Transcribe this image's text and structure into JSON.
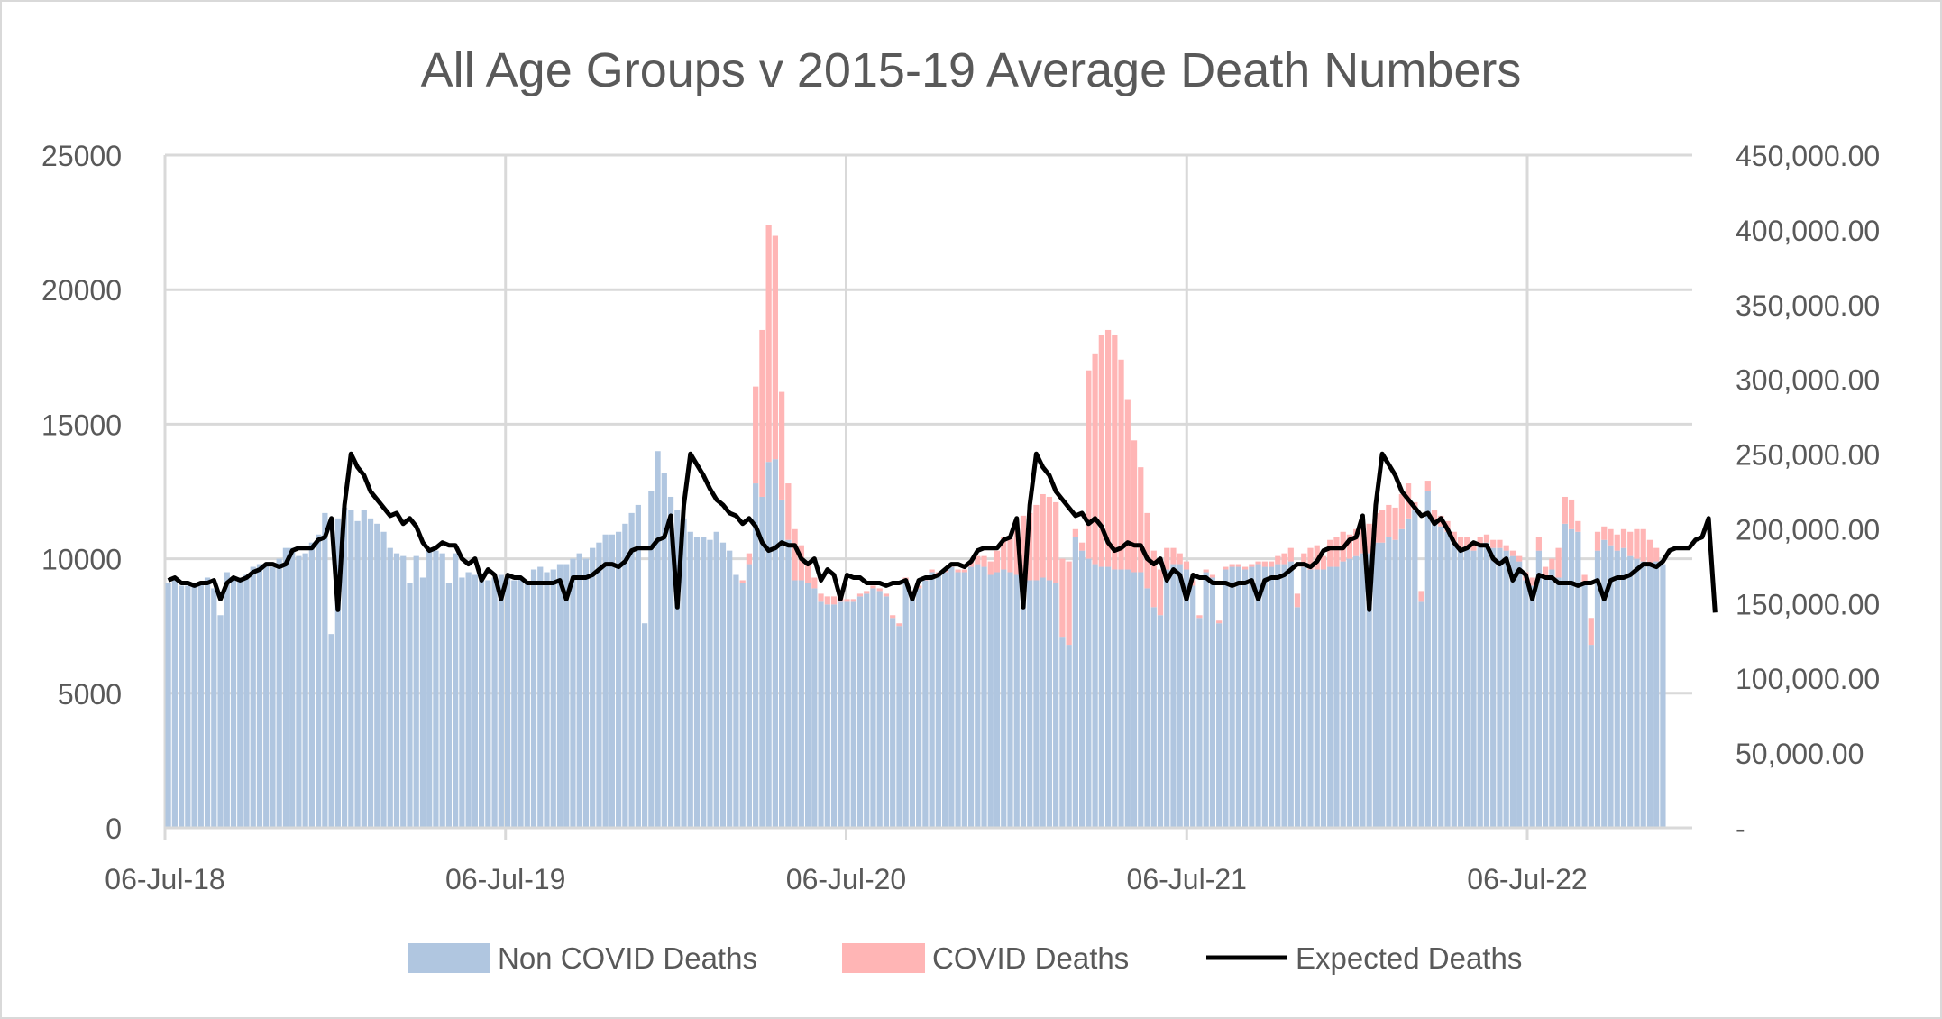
{
  "chart_data": {
    "type": "bar",
    "title": "All Age Groups v 2015-19 Average Death Numbers",
    "xlabel": "",
    "ylabel": "",
    "y_left_lim": [
      0,
      25000
    ],
    "y_left_ticks": [
      "0",
      "5000",
      "10000",
      "15000",
      "20000",
      "25000"
    ],
    "y_right_lim": [
      0,
      450000
    ],
    "y_right_ticks": [
      "-",
      "50,000.00",
      "100,000.00",
      "150,000.00",
      "200,000.00",
      "250,000.00",
      "300,000.00",
      "350,000.00",
      "400,000.00",
      "450,000.00"
    ],
    "x_ticks": [
      "06-Jul-18",
      "06-Jul-19",
      "06-Jul-20",
      "06-Jul-21",
      "06-Jul-22"
    ],
    "x_start": "2018-07-06",
    "x_end_weeks": 234,
    "grid": true,
    "legend_position": "bottom",
    "stacked": true,
    "series": [
      {
        "name": "Non COVID Deaths",
        "type": "bar",
        "color": "#b0c6e0",
        "axis": "left",
        "values": [
          9100,
          9200,
          9000,
          9000,
          9000,
          9100,
          9300,
          8900,
          7900,
          9500,
          9300,
          9300,
          9400,
          9700,
          9800,
          9800,
          9700,
          10000,
          10400,
          10400,
          10100,
          10200,
          10600,
          10900,
          11700,
          7200,
          11500,
          11900,
          11800,
          11400,
          11800,
          11500,
          11300,
          11000,
          10400,
          10200,
          10100,
          9100,
          10100,
          9300,
          10300,
          10300,
          10200,
          9100,
          10200,
          9300,
          9500,
          9400,
          9200,
          9200,
          9300,
          9400,
          9300,
          9200,
          9300,
          9100,
          9600,
          9700,
          9500,
          9600,
          9800,
          9800,
          10000,
          10200,
          10000,
          10400,
          10600,
          10900,
          10900,
          11000,
          11300,
          11700,
          12000,
          7600,
          12500,
          14000,
          13200,
          12300,
          11800,
          11500,
          11000,
          10800,
          10800,
          10700,
          11000,
          10600,
          10300,
          9400,
          9100,
          9800,
          12800,
          12300,
          13600,
          13700,
          12200,
          10700,
          9200,
          9200,
          9100,
          8900,
          8400,
          8300,
          8300,
          8400,
          8400,
          8400,
          8600,
          8700,
          8900,
          8800,
          8600,
          7800,
          7500,
          9200,
          8700,
          8900,
          9200,
          9500,
          9400,
          9500,
          9700,
          9500,
          9500,
          9700,
          9800,
          9700,
          9400,
          9500,
          9600,
          9500,
          9400,
          9300,
          9200,
          9200,
          9300,
          9200,
          9100,
          7100,
          6800,
          10800,
          10300,
          10000,
          9800,
          9700,
          9700,
          9600,
          9600,
          9600,
          9500,
          9500,
          8900,
          8200,
          7900,
          9600,
          9800,
          9800,
          9600,
          9000,
          7800,
          9500,
          9300,
          7600,
          9600,
          9700,
          9700,
          9600,
          9700,
          9800,
          9700,
          9700,
          9800,
          9800,
          9900,
          8200,
          9700,
          9600,
          9600,
          9600,
          9700,
          9700,
          9900,
          10000,
          10100,
          10200,
          10200,
          10600,
          10600,
          10800,
          10700,
          11100,
          11500,
          11800,
          8400,
          12500,
          11300,
          11200,
          11000,
          10600,
          10400,
          10400,
          10300,
          10500,
          10600,
          10400,
          10400,
          10300,
          10100,
          9900,
          9200,
          9000,
          10300,
          9300,
          9600,
          9300,
          11300,
          11100,
          11000,
          9100,
          6800,
          10300,
          10700,
          10500,
          10300,
          10400,
          10100,
          10000,
          9900,
          9800,
          9900,
          9800
        ]
      },
      {
        "name": "COVID Deaths",
        "type": "bar",
        "color": "#ffb5b5",
        "axis": "left",
        "values": [
          0,
          0,
          0,
          0,
          0,
          0,
          0,
          0,
          0,
          0,
          0,
          0,
          0,
          0,
          0,
          0,
          0,
          0,
          0,
          0,
          0,
          0,
          0,
          0,
          0,
          0,
          0,
          0,
          0,
          0,
          0,
          0,
          0,
          0,
          0,
          0,
          0,
          0,
          0,
          0,
          0,
          0,
          0,
          0,
          0,
          0,
          0,
          0,
          0,
          0,
          0,
          0,
          0,
          0,
          0,
          0,
          0,
          0,
          0,
          0,
          0,
          0,
          0,
          0,
          0,
          0,
          0,
          0,
          0,
          0,
          0,
          0,
          0,
          0,
          0,
          0,
          0,
          0,
          0,
          0,
          0,
          0,
          0,
          0,
          0,
          0,
          0,
          0,
          100,
          400,
          3600,
          6200,
          8800,
          8300,
          4000,
          2100,
          1900,
          1300,
          800,
          400,
          300,
          300,
          300,
          200,
          100,
          100,
          100,
          100,
          100,
          100,
          100,
          100,
          100,
          100,
          100,
          100,
          100,
          100,
          100,
          100,
          100,
          100,
          100,
          200,
          300,
          400,
          500,
          800,
          1200,
          1300,
          1800,
          2300,
          2500,
          2800,
          3100,
          3100,
          3000,
          2900,
          3100,
          300,
          300,
          7000,
          7800,
          8600,
          8800,
          8700,
          7800,
          6300,
          4900,
          3900,
          2800,
          2100,
          1700,
          800,
          600,
          400,
          300,
          200,
          100,
          100,
          100,
          100,
          100,
          100,
          100,
          100,
          100,
          100,
          200,
          200,
          300,
          400,
          500,
          500,
          500,
          800,
          900,
          500,
          1000,
          1100,
          1100,
          900,
          1000,
          1100,
          1100,
          1100,
          1200,
          1200,
          1200,
          1300,
          1300,
          300,
          400,
          400,
          500,
          400,
          400,
          400,
          400,
          400,
          300,
          300,
          300,
          300,
          300,
          200,
          200,
          200,
          300,
          300,
          500,
          400,
          400,
          1100,
          1000,
          1100,
          400,
          300,
          1000,
          700,
          500,
          600,
          600,
          700,
          900,
          1100,
          1200,
          900,
          500
        ]
      },
      {
        "name": "Expected Deaths",
        "type": "line",
        "color": "#000000",
        "axis": "left",
        "values": [
          9200,
          9300,
          9100,
          9100,
          9000,
          9100,
          9100,
          9200,
          8500,
          9100,
          9300,
          9200,
          9300,
          9500,
          9600,
          9800,
          9800,
          9700,
          9800,
          10300,
          10400,
          10400,
          10400,
          10700,
          10800,
          11500,
          8100,
          12000,
          13900,
          13400,
          13100,
          12500,
          12200,
          11900,
          11600,
          11700,
          11300,
          11500,
          11200,
          10600,
          10300,
          10400,
          10600,
          10500,
          10500,
          10000,
          9800,
          10000,
          9200,
          9600,
          9400,
          8500,
          9400,
          9300,
          9300,
          9100,
          9100,
          9100,
          9100,
          9100,
          9200,
          8500,
          9300,
          9300,
          9300,
          9400,
          9600,
          9800,
          9800,
          9700,
          9900,
          10300,
          10400,
          10400,
          10400,
          10700,
          10800,
          11600,
          8200,
          12000,
          13900,
          13500,
          13100,
          12600,
          12200,
          12000,
          11700,
          11600,
          11300,
          11500,
          11200,
          10600,
          10300,
          10400,
          10600,
          10500,
          10500,
          10000,
          9800,
          10000,
          9200,
          9600,
          9400,
          8500,
          9400,
          9300,
          9300,
          9100,
          9100,
          9100,
          9000,
          9100,
          9100,
          9200,
          8500,
          9200,
          9300,
          9300,
          9400,
          9600,
          9800,
          9800,
          9700,
          9900,
          10300,
          10400,
          10400,
          10400,
          10700,
          10800,
          11500,
          8200,
          12000,
          13900,
          13400,
          13100,
          12500,
          12200,
          11900,
          11600,
          11700,
          11300,
          11500,
          11200,
          10600,
          10300,
          10400,
          10600,
          10500,
          10500,
          10000,
          9800,
          10000,
          9200,
          9600,
          9400,
          8500,
          9400,
          9300,
          9300,
          9100,
          9100,
          9100,
          9000,
          9100,
          9100,
          9200,
          8500,
          9200,
          9300,
          9300,
          9400,
          9600,
          9800,
          9800,
          9700,
          9900,
          10300,
          10400,
          10400,
          10400,
          10700,
          10800,
          11600,
          8100,
          12000,
          13900,
          13500,
          13100,
          12500,
          12200,
          11900,
          11600,
          11700,
          11300,
          11500,
          11100,
          10600,
          10300,
          10400,
          10600,
          10500,
          10500,
          10000,
          9800,
          10000,
          9200,
          9600,
          9400,
          8500,
          9400,
          9300,
          9300,
          9100,
          9100,
          9100,
          9000,
          9100,
          9100,
          9200,
          8500,
          9200,
          9300,
          9300,
          9400,
          9600,
          9800,
          9800,
          9700,
          9900,
          10300,
          10400,
          10400,
          10400,
          10700,
          10800,
          11500,
          8000
        ]
      }
    ]
  }
}
